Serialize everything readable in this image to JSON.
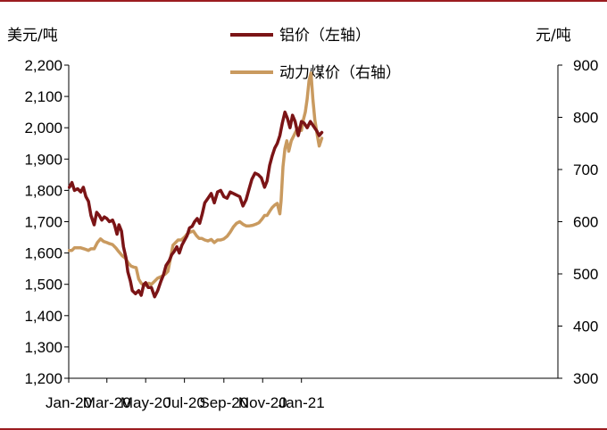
{
  "chart_data": {
    "type": "line",
    "left_unit": "美元/吨",
    "right_unit": "元/吨",
    "x_ticks": [
      "Jan-20",
      "Mar-20",
      "May-20",
      "Jul-20",
      "Sep-20",
      "Nov-20",
      "Jan-21"
    ],
    "y_left": {
      "min": 1200,
      "max": 2200,
      "ticks": [
        "1,200",
        "1,300",
        "1,400",
        "1,500",
        "1,600",
        "1,700",
        "1,800",
        "1,900",
        "2,000",
        "2,100",
        "2,200"
      ]
    },
    "y_right": {
      "min": 300,
      "max": 900,
      "ticks": [
        "300",
        "400",
        "500",
        "600",
        "700",
        "800",
        "900"
      ]
    },
    "series": [
      {
        "name": "铝价（左轴）",
        "axis": "left",
        "color": "#7b1416",
        "points": [
          [
            "2020-01-02",
            1810
          ],
          [
            "2020-01-06",
            1825
          ],
          [
            "2020-01-10",
            1800
          ],
          [
            "2020-01-15",
            1805
          ],
          [
            "2020-01-20",
            1795
          ],
          [
            "2020-01-24",
            1810
          ],
          [
            "2020-01-28",
            1780
          ],
          [
            "2020-02-01",
            1765
          ],
          [
            "2020-02-05",
            1720
          ],
          [
            "2020-02-10",
            1690
          ],
          [
            "2020-02-14",
            1730
          ],
          [
            "2020-02-18",
            1720
          ],
          [
            "2020-02-22",
            1705
          ],
          [
            "2020-02-26",
            1715
          ],
          [
            "2020-03-01",
            1710
          ],
          [
            "2020-03-05",
            1700
          ],
          [
            "2020-03-10",
            1705
          ],
          [
            "2020-03-13",
            1690
          ],
          [
            "2020-03-17",
            1660
          ],
          [
            "2020-03-20",
            1690
          ],
          [
            "2020-03-24",
            1670
          ],
          [
            "2020-03-27",
            1620
          ],
          [
            "2020-03-31",
            1585
          ],
          [
            "2020-04-03",
            1540
          ],
          [
            "2020-04-07",
            1510
          ],
          [
            "2020-04-10",
            1480
          ],
          [
            "2020-04-15",
            1470
          ],
          [
            "2020-04-20",
            1480
          ],
          [
            "2020-04-24",
            1465
          ],
          [
            "2020-04-28",
            1500
          ],
          [
            "2020-05-01",
            1505
          ],
          [
            "2020-05-05",
            1490
          ],
          [
            "2020-05-10",
            1490
          ],
          [
            "2020-05-15",
            1460
          ],
          [
            "2020-05-20",
            1480
          ],
          [
            "2020-05-25",
            1510
          ],
          [
            "2020-05-29",
            1530
          ],
          [
            "2020-06-02",
            1560
          ],
          [
            "2020-06-07",
            1575
          ],
          [
            "2020-06-11",
            1595
          ],
          [
            "2020-06-15",
            1605
          ],
          [
            "2020-06-19",
            1620
          ],
          [
            "2020-06-23",
            1600
          ],
          [
            "2020-06-27",
            1625
          ],
          [
            "2020-07-01",
            1640
          ],
          [
            "2020-07-05",
            1655
          ],
          [
            "2020-07-09",
            1680
          ],
          [
            "2020-07-13",
            1685
          ],
          [
            "2020-07-17",
            1700
          ],
          [
            "2020-07-21",
            1710
          ],
          [
            "2020-07-25",
            1695
          ],
          [
            "2020-07-29",
            1725
          ],
          [
            "2020-08-02",
            1760
          ],
          [
            "2020-08-07",
            1775
          ],
          [
            "2020-08-12",
            1790
          ],
          [
            "2020-08-17",
            1760
          ],
          [
            "2020-08-22",
            1795
          ],
          [
            "2020-08-27",
            1800
          ],
          [
            "2020-09-01",
            1780
          ],
          [
            "2020-09-06",
            1775
          ],
          [
            "2020-09-11",
            1795
          ],
          [
            "2020-09-16",
            1790
          ],
          [
            "2020-09-21",
            1785
          ],
          [
            "2020-09-26",
            1780
          ],
          [
            "2020-10-01",
            1750
          ],
          [
            "2020-10-06",
            1770
          ],
          [
            "2020-10-10",
            1800
          ],
          [
            "2020-10-15",
            1835
          ],
          [
            "2020-10-20",
            1855
          ],
          [
            "2020-10-25",
            1850
          ],
          [
            "2020-10-30",
            1840
          ],
          [
            "2020-11-04",
            1810
          ],
          [
            "2020-11-08",
            1830
          ],
          [
            "2020-11-12",
            1880
          ],
          [
            "2020-11-16",
            1910
          ],
          [
            "2020-11-20",
            1935
          ],
          [
            "2020-11-24",
            1950
          ],
          [
            "2020-11-28",
            1975
          ],
          [
            "2020-12-02",
            2015
          ],
          [
            "2020-12-06",
            2050
          ],
          [
            "2020-12-10",
            2030
          ],
          [
            "2020-12-14",
            2000
          ],
          [
            "2020-12-18",
            2040
          ],
          [
            "2020-12-22",
            2020
          ],
          [
            "2020-12-27",
            1975
          ],
          [
            "2021-01-01",
            2020
          ],
          [
            "2021-01-05",
            2015
          ],
          [
            "2021-01-10",
            2000
          ],
          [
            "2021-01-15",
            2020
          ],
          [
            "2021-01-20",
            2005
          ],
          [
            "2021-01-25",
            1990
          ],
          [
            "2021-01-29",
            1975
          ],
          [
            "2021-02-02",
            1985
          ]
        ]
      },
      {
        "name": "动力煤价（右轴）",
        "axis": "right",
        "color": "#c99a5f",
        "points": [
          [
            "2020-01-02",
            545
          ],
          [
            "2020-01-06",
            545
          ],
          [
            "2020-01-10",
            550
          ],
          [
            "2020-01-15",
            550
          ],
          [
            "2020-01-20",
            550
          ],
          [
            "2020-01-25",
            548
          ],
          [
            "2020-02-01",
            545
          ],
          [
            "2020-02-05",
            548
          ],
          [
            "2020-02-10",
            548
          ],
          [
            "2020-02-15",
            560
          ],
          [
            "2020-02-20",
            567
          ],
          [
            "2020-02-25",
            562
          ],
          [
            "2020-03-01",
            560
          ],
          [
            "2020-03-05",
            558
          ],
          [
            "2020-03-10",
            556
          ],
          [
            "2020-03-15",
            550
          ],
          [
            "2020-03-20",
            542
          ],
          [
            "2020-03-25",
            535
          ],
          [
            "2020-03-30",
            530
          ],
          [
            "2020-04-04",
            520
          ],
          [
            "2020-04-08",
            515
          ],
          [
            "2020-04-12",
            513
          ],
          [
            "2020-04-16",
            512
          ],
          [
            "2020-04-20",
            490
          ],
          [
            "2020-04-24",
            482
          ],
          [
            "2020-04-28",
            478
          ],
          [
            "2020-05-02",
            478
          ],
          [
            "2020-05-06",
            482
          ],
          [
            "2020-05-10",
            480
          ],
          [
            "2020-05-15",
            486
          ],
          [
            "2020-05-20",
            492
          ],
          [
            "2020-05-26",
            495
          ],
          [
            "2020-06-01",
            500
          ],
          [
            "2020-06-05",
            505
          ],
          [
            "2020-06-09",
            530
          ],
          [
            "2020-06-13",
            555
          ],
          [
            "2020-06-17",
            560
          ],
          [
            "2020-06-21",
            565
          ],
          [
            "2020-06-26",
            565
          ],
          [
            "2020-07-01",
            570
          ],
          [
            "2020-07-05",
            576
          ],
          [
            "2020-07-10",
            580
          ],
          [
            "2020-07-15",
            582
          ],
          [
            "2020-07-20",
            573
          ],
          [
            "2020-07-24",
            568
          ],
          [
            "2020-07-28",
            568
          ],
          [
            "2020-08-02",
            565
          ],
          [
            "2020-08-07",
            563
          ],
          [
            "2020-08-12",
            566
          ],
          [
            "2020-08-17",
            560
          ],
          [
            "2020-08-22",
            565
          ],
          [
            "2020-08-27",
            565
          ],
          [
            "2020-09-01",
            567
          ],
          [
            "2020-09-06",
            572
          ],
          [
            "2020-09-11",
            580
          ],
          [
            "2020-09-16",
            590
          ],
          [
            "2020-09-21",
            597
          ],
          [
            "2020-09-26",
            600
          ],
          [
            "2020-10-01",
            595
          ],
          [
            "2020-10-06",
            592
          ],
          [
            "2020-10-11",
            592
          ],
          [
            "2020-10-16",
            593
          ],
          [
            "2020-10-21",
            595
          ],
          [
            "2020-10-26",
            598
          ],
          [
            "2020-10-31",
            605
          ],
          [
            "2020-11-04",
            612
          ],
          [
            "2020-11-08",
            612
          ],
          [
            "2020-11-12",
            620
          ],
          [
            "2020-11-16",
            627
          ],
          [
            "2020-11-20",
            632
          ],
          [
            "2020-11-24",
            635
          ],
          [
            "2020-11-28",
            615
          ],
          [
            "2020-11-30",
            640
          ],
          [
            "2020-12-03",
            705
          ],
          [
            "2020-12-06",
            740
          ],
          [
            "2020-12-09",
            755
          ],
          [
            "2020-12-12",
            735
          ],
          [
            "2020-12-16",
            755
          ],
          [
            "2020-12-20",
            765
          ],
          [
            "2020-12-24",
            775
          ],
          [
            "2020-12-28",
            780
          ],
          [
            "2021-01-01",
            775
          ],
          [
            "2021-01-04",
            795
          ],
          [
            "2021-01-07",
            810
          ],
          [
            "2021-01-10",
            835
          ],
          [
            "2021-01-13",
            870
          ],
          [
            "2021-01-16",
            885
          ],
          [
            "2021-01-19",
            835
          ],
          [
            "2021-01-22",
            795
          ],
          [
            "2021-01-26",
            765
          ],
          [
            "2021-01-29",
            745
          ],
          [
            "2021-02-02",
            760
          ]
        ]
      }
    ]
  }
}
